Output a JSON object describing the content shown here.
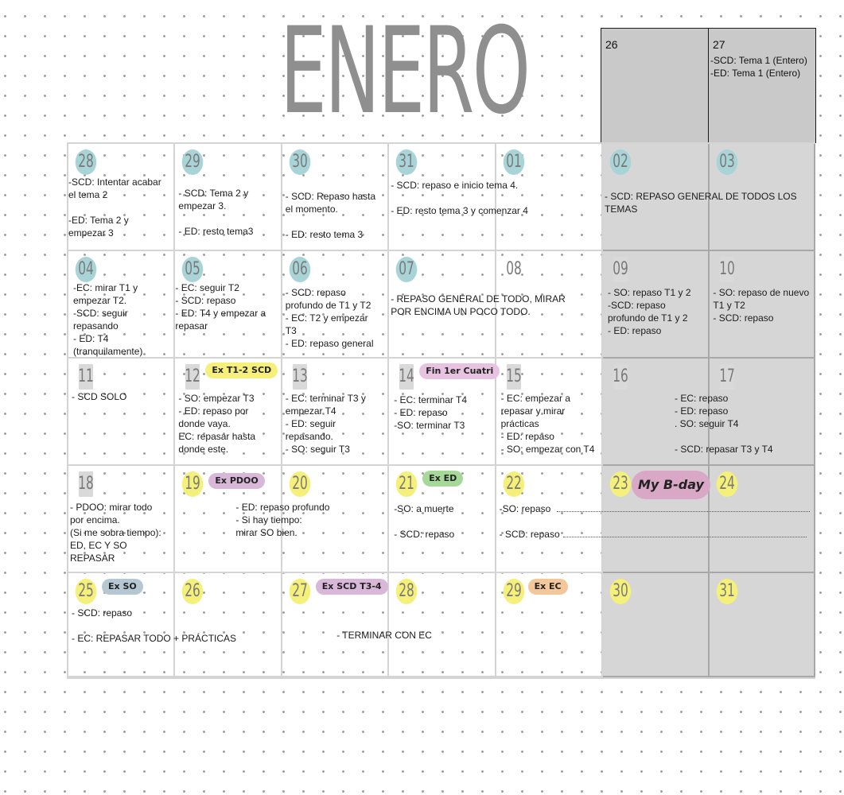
{
  "month": "ENERO",
  "top_days": [
    {
      "day": "26",
      "note": ""
    },
    {
      "day": "27",
      "note": "-SCD: Tema 1 (Entero)\n-ED: Tema 1 (Entero)"
    }
  ],
  "weeks": [
    [
      {
        "day": "28",
        "mark": "teal",
        "note": "-SCD: Intentar acabar\nel tema 2\n\n-ED: Tema 2 y\nempezar 3"
      },
      {
        "day": "29",
        "mark": "teal",
        "note": "- SCD: Tema 2 y\nempezar 3.\n\n- ED: resto tema3"
      },
      {
        "day": "30",
        "mark": "teal",
        "note": "- SCD: Repaso hasta\nel momento.\n\n- ED: resto tema 3"
      },
      {
        "day": "31",
        "mark": "teal",
        "note": "- SCD: repaso e inicio tema 4.\n\n- ED: resto tema 3 y comenzar 4"
      },
      {
        "day": "01",
        "mark": "teal",
        "note": ""
      },
      {
        "day": "02",
        "mark": "teal",
        "note": "- SCD: REPASO GENERAL DE TODOS LOS\nTEMAS"
      },
      {
        "day": "03",
        "mark": "teal",
        "note": ""
      }
    ],
    [
      {
        "day": "04",
        "mark": "teal",
        "note": "-EC: mirar T1 y\nempezar T2.\n-SCD: seguir\nrepasando\n- ED: T4\n(tranquilamente)"
      },
      {
        "day": "05",
        "mark": "teal",
        "note": "- EC: seguir T2\n- SCD: repaso\n- ED: T4 y empezar a\nrepasar"
      },
      {
        "day": "06",
        "mark": "teal",
        "note": "- SCD: repaso\nprofundo de T1 y T2\n- EC: T2 y empezar\nT3\n- ED: repaso general"
      },
      {
        "day": "07",
        "mark": "teal",
        "note": "- REPASO GENERAL DE TODO, MIRAR\nPOR ENCIMA UN POCO TODO."
      },
      {
        "day": "08",
        "mark": "none",
        "note": ""
      },
      {
        "day": "09",
        "mark": "grey",
        "note": "- SO: repaso T1 y 2\n-SCD: repaso\nprofundo de T1 y 2\n- ED: repaso"
      },
      {
        "day": "10",
        "mark": "grey",
        "note": "- SO: repaso de nuevo\nT1 y T2\n- SCD: repaso"
      }
    ],
    [
      {
        "day": "11",
        "mark": "grey",
        "note": "- SCD SOLO"
      },
      {
        "day": "12",
        "mark": "grey",
        "note": "- SO: empezar T3\n- ED: repaso por\ndonde vaya.\nEC: repasar hasta\ndonde este.",
        "tag": "Ex T1-2 SCD",
        "tag_color": "yellow"
      },
      {
        "day": "13",
        "mark": "grey",
        "note": "- EC: terminar T3 y\nempezar T4\n- ED: seguir\nrepasando.\n- SO: seguir T3"
      },
      {
        "day": "14",
        "mark": "grey",
        "note": "- EC: terminar T4\n- ED: repaso\n-SO: terminar T3",
        "tag": "Fin 1er Cuatri",
        "tag_color": "pink"
      },
      {
        "day": "15",
        "mark": "grey",
        "note": "- EC: empezar a\nrepasar y mirar\nprácticas\n- ED: repaso\n- SO: empezar con T4"
      },
      {
        "day": "16",
        "mark": "grey",
        "note": "- EC: repaso\n- ED: repaso\n. SO: seguir T4\n\n- SCD: repasar T3 y T4"
      },
      {
        "day": "17",
        "mark": "grey",
        "note": ""
      }
    ],
    [
      {
        "day": "18",
        "mark": "grey",
        "note": "- PDOO: mirar todo\npor encima.\n(Si me sobra tiempo):\nED, EC Y SO\nREPASAR"
      },
      {
        "day": "19",
        "mark": "yellow",
        "note": "- ED: repaso profundo\n- Si hay tiempo:\nmirar SO bien.",
        "tag": "Ex PDOO",
        "tag_color": "purple"
      },
      {
        "day": "20",
        "mark": "yellow",
        "note": ""
      },
      {
        "day": "21",
        "mark": "yellow",
        "note": "-SO: a muerte\n\n- SCD: repaso",
        "tag": "Ex ED",
        "tag_color": "green"
      },
      {
        "day": "22",
        "mark": "yellow",
        "note": "-SO: repaso\n\n- SCD: repaso"
      },
      {
        "day": "23",
        "mark": "yellow",
        "note": "",
        "tag": "My B-day",
        "tag_color": "bday"
      },
      {
        "day": "24",
        "mark": "yellow",
        "note": ""
      }
    ],
    [
      {
        "day": "25",
        "mark": "yellow",
        "note": "- SCD: repaso\n\n- EC: REPASAR TODO + PRÁCTICAS",
        "tag": "Ex SO",
        "tag_color": "blue"
      },
      {
        "day": "26",
        "mark": "yellow",
        "note": ""
      },
      {
        "day": "27",
        "mark": "yellow",
        "note": "",
        "tag": "Ex SCD T3-4",
        "tag_color": "purple"
      },
      {
        "day": "28",
        "mark": "yellow",
        "note": "- TERMINAR CON EC"
      },
      {
        "day": "29",
        "mark": "yellow",
        "note": "",
        "tag": "Ex EC",
        "tag_color": "orange"
      },
      {
        "day": "30",
        "mark": "yellow",
        "note": ""
      },
      {
        "day": "31",
        "mark": "yellow",
        "note": ""
      }
    ]
  ]
}
